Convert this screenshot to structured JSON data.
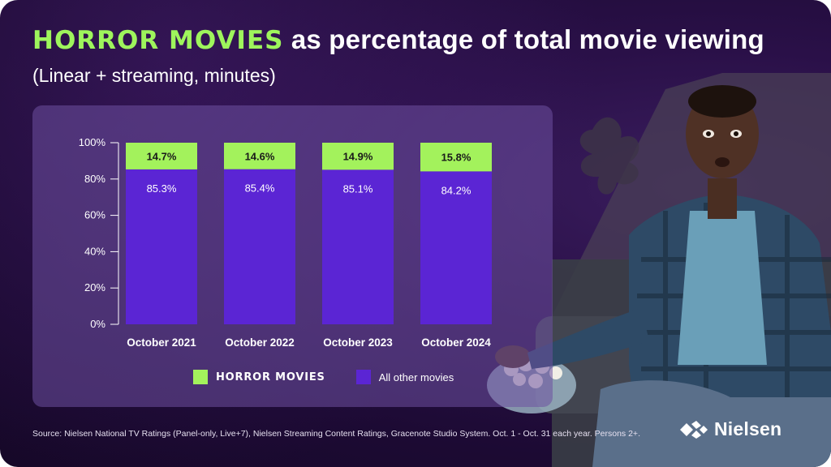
{
  "title": {
    "highlight": "HORROR MOVIES",
    "rest": "as percentage of total movie viewing"
  },
  "subtitle": "(Linear + streaming, minutes)",
  "colors": {
    "horror": "#a3f25c",
    "other": "#5b25d4",
    "panel": "#6e50a0",
    "background": "#1c0a33"
  },
  "chart_data": {
    "type": "bar",
    "stacked": true,
    "categories": [
      "October 2021",
      "October 2022",
      "October 2023",
      "October 2024"
    ],
    "series": [
      {
        "name": "All other movies",
        "values": [
          85.3,
          85.4,
          85.1,
          84.2
        ],
        "labels": [
          "85.3%",
          "85.4%",
          "85.1%",
          "84.2%"
        ]
      },
      {
        "name": "HORROR MOVIES",
        "values": [
          14.7,
          14.6,
          14.9,
          15.8
        ],
        "labels": [
          "14.7%",
          "14.6%",
          "14.9%",
          "15.8%"
        ]
      }
    ],
    "yticks": [
      "0%",
      "20%",
      "40%",
      "60%",
      "80%",
      "100%"
    ],
    "ylim": [
      0,
      100
    ],
    "grid": false,
    "legend": "bottom"
  },
  "legend": {
    "horror_label": "HORROR MOVIES",
    "other_label": "All other movies"
  },
  "source": "Source: Nielsen National TV Ratings (Panel-only, Live+7), Nielsen Streaming Content Ratings, Gracenote Studio System. Oct. 1 - Oct. 31 each year. Persons 2+.",
  "logo": {
    "text": "Nielsen",
    "icon": "nielsen-logo-icon"
  },
  "photo": {
    "icon": "person-watching-movie-with-popcorn"
  }
}
